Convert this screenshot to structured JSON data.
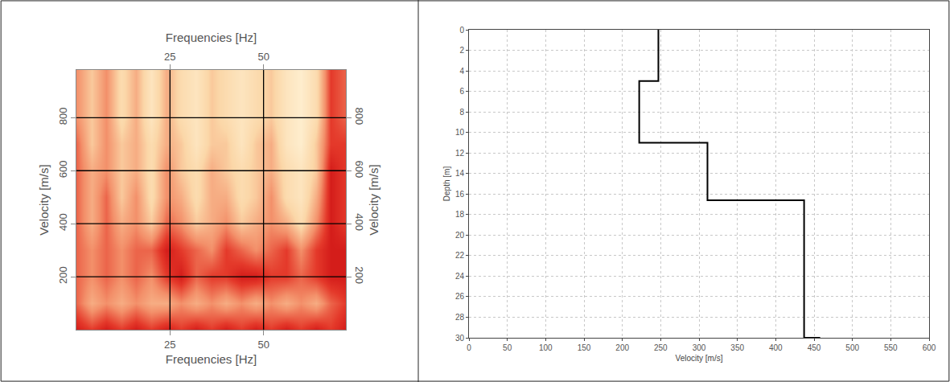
{
  "chart_data": [
    {
      "type": "heatmap",
      "x_label": "Frequencies [Hz]",
      "y_label": "Velocity [m/s]",
      "x": [
        0,
        4,
        8,
        12,
        16,
        20,
        24,
        28,
        32,
        36,
        40,
        44,
        48,
        52,
        56,
        60,
        64,
        68,
        72
      ],
      "y": [
        0,
        100,
        200,
        300,
        400,
        500,
        600,
        700,
        800,
        900,
        1000
      ],
      "cells": [
        [
          0.9,
          0.8,
          0.9,
          0.8,
          0.9,
          0.8,
          0.9,
          0.8,
          0.9,
          0.8,
          0.9,
          0.8,
          0.9,
          0.8,
          0.9,
          0.8,
          0.9,
          0.8,
          0.9
        ],
        [
          0.7,
          0.5,
          0.6,
          0.5,
          0.6,
          0.5,
          0.5,
          0.6,
          0.5,
          0.6,
          0.5,
          0.6,
          0.5,
          0.6,
          0.5,
          0.6,
          0.5,
          0.7,
          0.8
        ],
        [
          0.7,
          0.6,
          0.7,
          0.6,
          0.7,
          0.6,
          0.8,
          0.9,
          0.7,
          0.8,
          0.8,
          0.9,
          0.9,
          0.8,
          0.8,
          0.7,
          0.8,
          0.9,
          0.9
        ],
        [
          0.7,
          0.6,
          0.7,
          0.6,
          0.7,
          0.7,
          0.9,
          0.8,
          0.7,
          0.6,
          0.8,
          0.7,
          0.6,
          0.7,
          0.8,
          0.6,
          0.8,
          0.9,
          0.9
        ],
        [
          0.7,
          0.5,
          0.7,
          0.5,
          0.6,
          0.4,
          0.7,
          0.6,
          0.4,
          0.5,
          0.6,
          0.4,
          0.5,
          0.6,
          0.5,
          0.3,
          0.6,
          0.9,
          0.8
        ],
        [
          0.7,
          0.5,
          0.7,
          0.4,
          0.6,
          0.3,
          0.6,
          0.5,
          0.3,
          0.5,
          0.5,
          0.3,
          0.4,
          0.6,
          0.3,
          0.2,
          0.5,
          0.9,
          0.8
        ],
        [
          0.7,
          0.5,
          0.6,
          0.4,
          0.5,
          0.3,
          0.6,
          0.4,
          0.3,
          0.5,
          0.4,
          0.3,
          0.4,
          0.5,
          0.3,
          0.2,
          0.4,
          0.9,
          0.8
        ],
        [
          0.7,
          0.4,
          0.6,
          0.4,
          0.5,
          0.3,
          0.5,
          0.4,
          0.2,
          0.4,
          0.4,
          0.2,
          0.4,
          0.5,
          0.2,
          0.1,
          0.4,
          0.8,
          0.8
        ],
        [
          0.6,
          0.4,
          0.6,
          0.3,
          0.5,
          0.2,
          0.5,
          0.3,
          0.2,
          0.4,
          0.3,
          0.2,
          0.3,
          0.4,
          0.2,
          0.1,
          0.3,
          0.8,
          0.7
        ],
        [
          0.6,
          0.4,
          0.6,
          0.3,
          0.5,
          0.2,
          0.5,
          0.3,
          0.2,
          0.4,
          0.3,
          0.2,
          0.3,
          0.4,
          0.2,
          0.1,
          0.3,
          0.8,
          0.7
        ],
        [
          0.6,
          0.4,
          0.6,
          0.3,
          0.5,
          0.2,
          0.5,
          0.3,
          0.2,
          0.4,
          0.3,
          0.2,
          0.3,
          0.4,
          0.2,
          0.1,
          0.3,
          0.8,
          0.7
        ]
      ],
      "zlim": [
        0,
        1
      ],
      "xlim": [
        0,
        72
      ],
      "xticks": [
        25,
        50
      ],
      "ylim": [
        0,
        980
      ],
      "yticks": [
        200,
        400,
        600,
        800
      ],
      "grid": true
    },
    {
      "type": "line",
      "x_label": "Velocity [m/s]",
      "y_label": "Depth [m]",
      "x": [
        247,
        247,
        222,
        222,
        311,
        311,
        437,
        437,
        458
      ],
      "y": [
        0,
        5,
        5,
        11,
        11,
        16.6,
        16.6,
        30,
        30
      ],
      "color": "#000000",
      "line_style": "solid",
      "xlim": [
        0,
        600
      ],
      "xticks": [
        0,
        50,
        100,
        150,
        200,
        250,
        300,
        350,
        400,
        450,
        500,
        550,
        600
      ],
      "ylim": [
        30,
        0
      ],
      "yticks": [
        0,
        2,
        4,
        6,
        8,
        10,
        12,
        14,
        16,
        18,
        20,
        22,
        24,
        26,
        28,
        30
      ],
      "grid": true
    }
  ]
}
